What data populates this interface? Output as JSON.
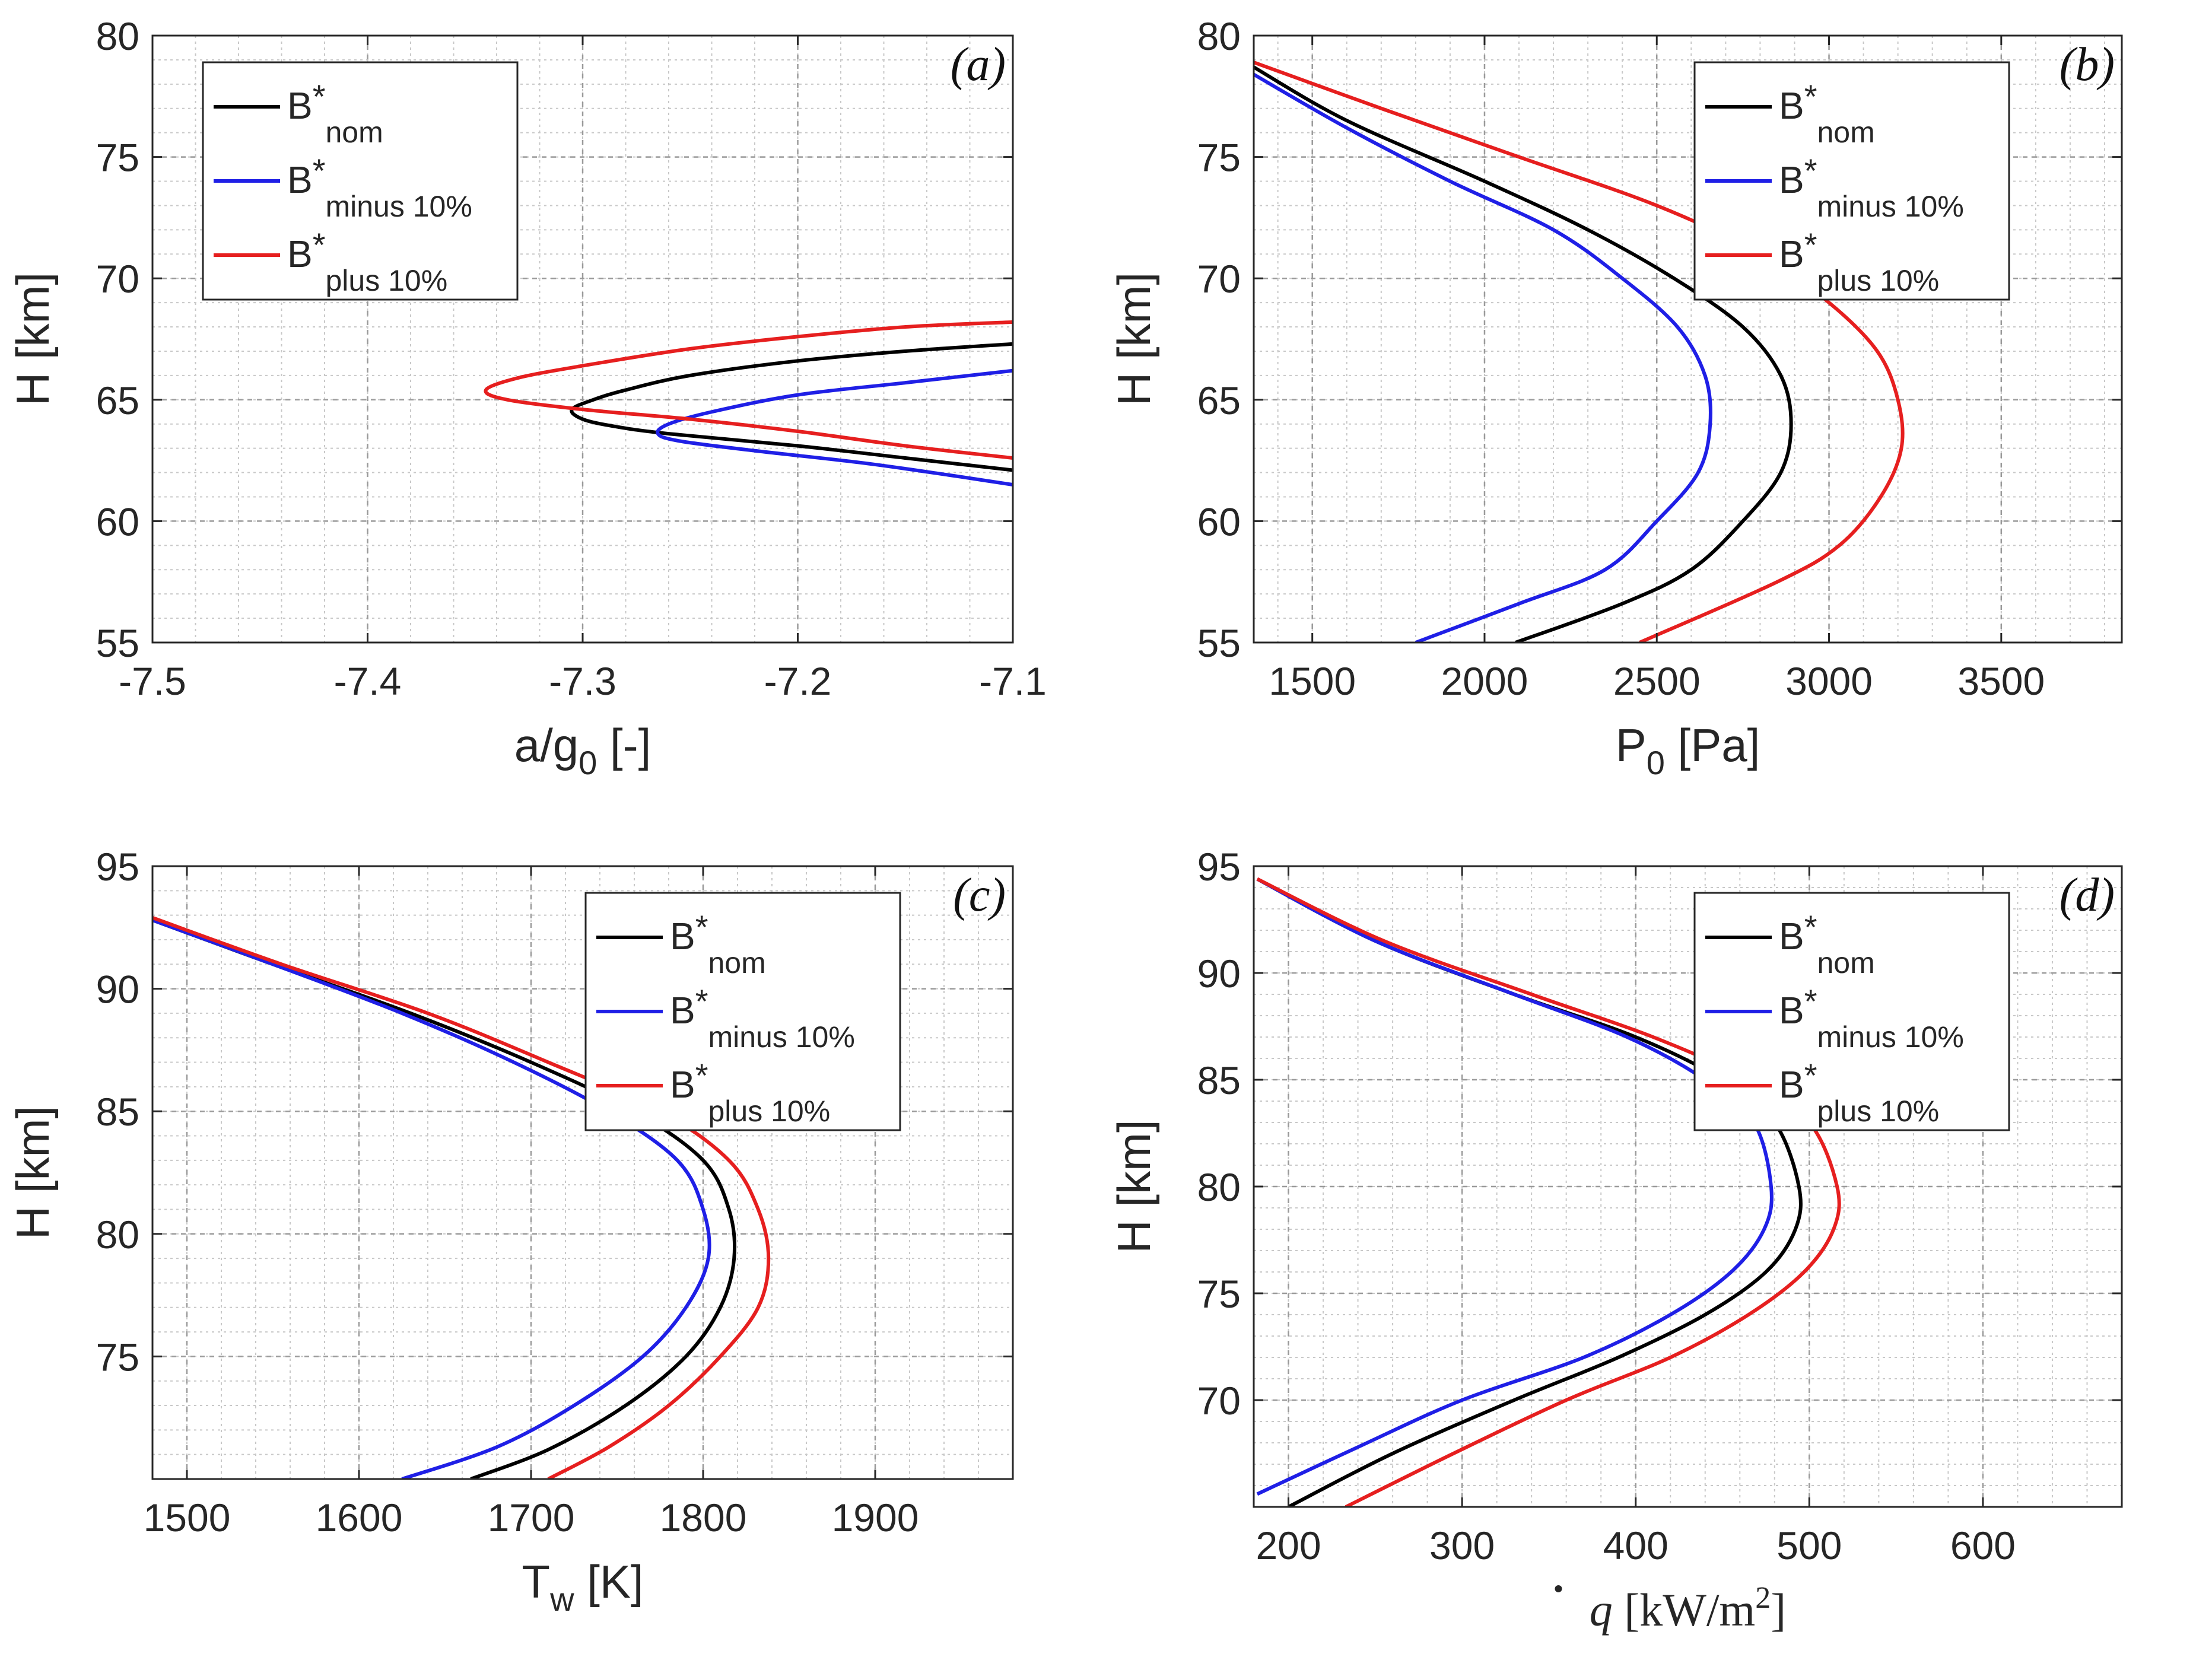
{
  "chart_data": [
    {
      "id": "a",
      "type": "line",
      "panel_label": "(a)",
      "xlabel": {
        "main": "a/g",
        "sub": "0",
        "rest": " [-]"
      },
      "ylabel": "H [km]",
      "xlim": [
        -7.5,
        -7.1
      ],
      "ylim": [
        55,
        80
      ],
      "xticks": [
        "-7.5",
        "-7.4",
        "-7.3",
        "-7.2",
        "-7.1"
      ],
      "yticks": [
        "55",
        "60",
        "65",
        "70",
        "75",
        "80"
      ],
      "grid": true,
      "legend_position": "top-left",
      "series": [
        {
          "name": "B*nom",
          "legend_main": "B",
          "legend_sup": "*",
          "legend_sub": "nom",
          "color": "#000000",
          "points": [
            [
              -7.1,
              67.3
            ],
            [
              -7.15,
              67.0
            ],
            [
              -7.2,
              66.6
            ],
            [
              -7.25,
              66.0
            ],
            [
              -7.28,
              65.4
            ],
            [
              -7.295,
              65.0
            ],
            [
              -7.305,
              64.6
            ],
            [
              -7.3,
              64.2
            ],
            [
              -7.285,
              63.9
            ],
            [
              -7.26,
              63.6
            ],
            [
              -7.2,
              63.1
            ],
            [
              -7.15,
              62.6
            ],
            [
              -7.1,
              62.1
            ]
          ]
        },
        {
          "name": "B*minus 10%",
          "legend_main": "B",
          "legend_sup": "*",
          "legend_sub": "minus 10%",
          "color": "#1f1fe6",
          "points": [
            [
              -7.1,
              66.2
            ],
            [
              -7.15,
              65.7
            ],
            [
              -7.2,
              65.2
            ],
            [
              -7.24,
              64.5
            ],
            [
              -7.26,
              64.0
            ],
            [
              -7.265,
              63.6
            ],
            [
              -7.255,
              63.3
            ],
            [
              -7.22,
              62.9
            ],
            [
              -7.17,
              62.4
            ],
            [
              -7.13,
              61.9
            ],
            [
              -7.1,
              61.5
            ]
          ]
        },
        {
          "name": "B*plus 10%",
          "legend_main": "B",
          "legend_sup": "*",
          "legend_sub": "plus 10%",
          "color": "#e61f1f",
          "points": [
            [
              -7.1,
              68.2
            ],
            [
              -7.15,
              68.0
            ],
            [
              -7.2,
              67.6
            ],
            [
              -7.25,
              67.1
            ],
            [
              -7.3,
              66.4
            ],
            [
              -7.33,
              65.9
            ],
            [
              -7.345,
              65.4
            ],
            [
              -7.335,
              65.0
            ],
            [
              -7.3,
              64.6
            ],
            [
              -7.25,
              64.2
            ],
            [
              -7.2,
              63.7
            ],
            [
              -7.15,
              63.1
            ],
            [
              -7.1,
              62.6
            ]
          ]
        }
      ]
    },
    {
      "id": "b",
      "type": "line",
      "panel_label": "(b)",
      "xlabel": {
        "main": "P",
        "sub": "0",
        "rest": " [Pa]"
      },
      "ylabel": "H [km]",
      "xlim": [
        1330,
        3850
      ],
      "ylim": [
        55,
        80
      ],
      "xticks": [
        "1500",
        "2000",
        "2500",
        "3000",
        "3500"
      ],
      "yticks": [
        "55",
        "60",
        "65",
        "70",
        "75",
        "80"
      ],
      "grid": true,
      "legend_position": "top-right",
      "series": [
        {
          "name": "B*nom",
          "legend_main": "B",
          "legend_sup": "*",
          "legend_sub": "nom",
          "color": "#000000",
          "points": [
            [
              1330,
              78.7
            ],
            [
              1600,
              76.5
            ],
            [
              2000,
              74.0
            ],
            [
              2300,
              72.0
            ],
            [
              2550,
              70.0
            ],
            [
              2750,
              68.0
            ],
            [
              2860,
              66.0
            ],
            [
              2890,
              64.0
            ],
            [
              2860,
              62.0
            ],
            [
              2750,
              60.0
            ],
            [
              2600,
              58.0
            ],
            [
              2400,
              56.6
            ],
            [
              2090,
              55.0
            ]
          ]
        },
        {
          "name": "B*minus 10%",
          "legend_main": "B",
          "legend_sup": "*",
          "legend_sub": "minus 10%",
          "color": "#1f1fe6",
          "points": [
            [
              1330,
              78.4
            ],
            [
              1600,
              76.2
            ],
            [
              1900,
              74.0
            ],
            [
              2200,
              72.0
            ],
            [
              2400,
              70.0
            ],
            [
              2560,
              68.0
            ],
            [
              2640,
              66.0
            ],
            [
              2655,
              64.0
            ],
            [
              2620,
              62.0
            ],
            [
              2500,
              60.0
            ],
            [
              2350,
              58.0
            ],
            [
              2100,
              56.6
            ],
            [
              1800,
              55.0
            ]
          ]
        },
        {
          "name": "B*plus 10%",
          "legend_main": "B",
          "legend_sup": "*",
          "legend_sub": "plus 10%",
          "color": "#e61f1f",
          "points": [
            [
              1330,
              78.9
            ],
            [
              1700,
              77.0
            ],
            [
              2100,
              75.0
            ],
            [
              2500,
              73.0
            ],
            [
              2800,
              71.0
            ],
            [
              3000,
              69.0
            ],
            [
              3140,
              67.0
            ],
            [
              3200,
              65.0
            ],
            [
              3210,
              63.0
            ],
            [
              3150,
              61.0
            ],
            [
              3030,
              59.0
            ],
            [
              2850,
              57.5
            ],
            [
              2450,
              55.0
            ]
          ]
        }
      ]
    },
    {
      "id": "c",
      "type": "line",
      "panel_label": "(c)",
      "xlabel": {
        "main": "T",
        "sub": "w",
        "rest": " [K]"
      },
      "ylabel": "H [km]",
      "xlim": [
        1480,
        1980
      ],
      "ylim": [
        70,
        95
      ],
      "xticks": [
        "1500",
        "1600",
        "1700",
        "1800",
        "1900"
      ],
      "yticks": [
        "75",
        "80",
        "85",
        "90",
        "95"
      ],
      "grid": true,
      "legend_position": "top-right",
      "series": [
        {
          "name": "B*nom",
          "legend_main": "B",
          "legend_sup": "*",
          "legend_sub": "nom",
          "color": "#000000",
          "points": [
            [
              1480,
              92.8
            ],
            [
              1550,
              91.0
            ],
            [
              1630,
              89.0
            ],
            [
              1700,
              87.0
            ],
            [
              1760,
              85.0
            ],
            [
              1800,
              83.0
            ],
            [
              1815,
              81.0
            ],
            [
              1818,
              79.0
            ],
            [
              1810,
              77.0
            ],
            [
              1790,
              75.0
            ],
            [
              1755,
              73.0
            ],
            [
              1710,
              71.2
            ],
            [
              1665,
              70.0
            ]
          ]
        },
        {
          "name": "B*minus 10%",
          "legend_main": "B",
          "legend_sup": "*",
          "legend_sub": "minus 10%",
          "color": "#1f1fe6",
          "points": [
            [
              1480,
              92.8
            ],
            [
              1550,
              91.0
            ],
            [
              1625,
              89.0
            ],
            [
              1690,
              87.0
            ],
            [
              1745,
              85.0
            ],
            [
              1785,
              83.0
            ],
            [
              1800,
              81.0
            ],
            [
              1803,
              79.0
            ],
            [
              1790,
              77.0
            ],
            [
              1765,
              75.0
            ],
            [
              1725,
              73.0
            ],
            [
              1680,
              71.3
            ],
            [
              1625,
              70.0
            ]
          ]
        },
        {
          "name": "B*plus 10%",
          "legend_main": "B",
          "legend_sup": "*",
          "legend_sub": "plus 10%",
          "color": "#e61f1f",
          "points": [
            [
              1480,
              92.9
            ],
            [
              1555,
              91.0
            ],
            [
              1640,
              89.0
            ],
            [
              1710,
              87.0
            ],
            [
              1775,
              85.0
            ],
            [
              1815,
              83.0
            ],
            [
              1832,
              81.0
            ],
            [
              1838,
              79.0
            ],
            [
              1832,
              77.0
            ],
            [
              1810,
              75.0
            ],
            [
              1780,
              73.0
            ],
            [
              1745,
              71.3
            ],
            [
              1710,
              70.0
            ]
          ]
        }
      ]
    },
    {
      "id": "d",
      "type": "line",
      "panel_label": "(d)",
      "xlabel": {
        "main": "q",
        "dot": true,
        "rest": " [kW/m",
        "sup": "2",
        "close": "]"
      },
      "ylabel": "H [km]",
      "xlim": [
        180,
        680
      ],
      "ylim": [
        65,
        95
      ],
      "xticks": [
        "200",
        "300",
        "400",
        "500",
        "600"
      ],
      "yticks": [
        "70",
        "75",
        "80",
        "85",
        "90",
        "95"
      ],
      "grid": true,
      "legend_position": "top-right",
      "series": [
        {
          "name": "B*nom",
          "legend_main": "B",
          "legend_sup": "*",
          "legend_sub": "nom",
          "color": "#000000",
          "points": [
            [
              182,
              94.4
            ],
            [
              250,
              91.5
            ],
            [
              330,
              89.0
            ],
            [
              400,
              87.0
            ],
            [
              450,
              85.0
            ],
            [
              480,
              83.0
            ],
            [
              494,
              80.0
            ],
            [
              492,
              78.0
            ],
            [
              475,
              76.0
            ],
            [
              440,
              74.0
            ],
            [
              390,
              72.0
            ],
            [
              330,
              70.0
            ],
            [
              260,
              67.5
            ],
            [
              200,
              65.0
            ]
          ]
        },
        {
          "name": "B*minus 10%",
          "legend_main": "B",
          "legend_sup": "*",
          "legend_sub": "minus 10%",
          "color": "#1f1fe6",
          "points": [
            [
              182,
              94.4
            ],
            [
              250,
              91.5
            ],
            [
              330,
              89.0
            ],
            [
              395,
              87.0
            ],
            [
              440,
              85.0
            ],
            [
              468,
              83.0
            ],
            [
              478,
              80.0
            ],
            [
              474,
              78.0
            ],
            [
              455,
              76.0
            ],
            [
              420,
              74.0
            ],
            [
              370,
              72.0
            ],
            [
              300,
              70.0
            ],
            [
              240,
              67.8
            ],
            [
              182,
              65.6
            ]
          ]
        },
        {
          "name": "B*plus 10%",
          "legend_main": "B",
          "legend_sup": "*",
          "legend_sub": "plus 10%",
          "color": "#e61f1f",
          "points": [
            [
              182,
              94.4
            ],
            [
              255,
              91.5
            ],
            [
              340,
              89.0
            ],
            [
              410,
              87.0
            ],
            [
              465,
              85.0
            ],
            [
              500,
              83.0
            ],
            [
              516,
              80.0
            ],
            [
              514,
              78.0
            ],
            [
              497,
              76.0
            ],
            [
              465,
              74.0
            ],
            [
              420,
              72.0
            ],
            [
              360,
              70.0
            ],
            [
              295,
              67.5
            ],
            [
              233,
              65.0
            ]
          ]
        }
      ]
    }
  ]
}
